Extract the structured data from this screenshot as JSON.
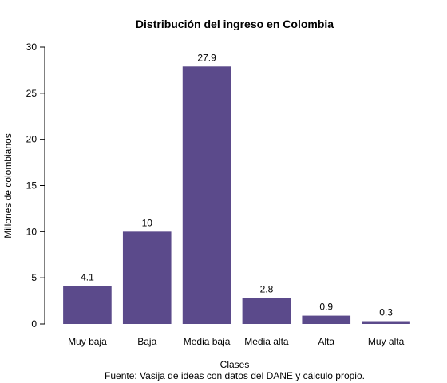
{
  "chart_data": {
    "type": "bar",
    "title": "Distribución del ingreso en Colombia",
    "xlabel": "Clases",
    "ylabel": "Millones de colombianos",
    "caption": "Fuente: Vasija de ideas con datos del DANE y cálculo propio.",
    "categories": [
      "Muy baja",
      "Baja",
      "Media baja",
      "Media alta",
      "Alta",
      "Muy alta"
    ],
    "values": [
      4.1,
      10,
      27.9,
      2.8,
      0.9,
      0.3
    ],
    "data_labels": [
      "4.1",
      "10",
      "27.9",
      "2.8",
      "0.9",
      "0.3"
    ],
    "yticks": [
      0,
      5,
      10,
      15,
      20,
      25,
      30
    ],
    "ylim": [
      0,
      30
    ],
    "bar_color": "#5b4a8b",
    "grid": false
  }
}
